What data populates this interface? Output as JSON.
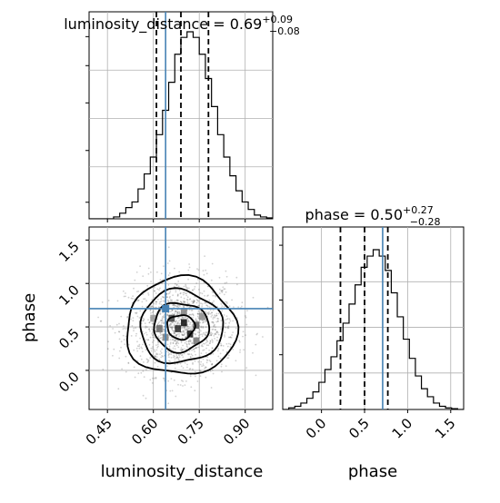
{
  "chart_data": [
    {
      "type": "histogram",
      "panel": "top-left",
      "parameter": "luminosity_distance",
      "title": {
        "name": "luminosity_distance",
        "value": "0.69",
        "plus": "+0.09",
        "minus": "−0.08"
      },
      "x_range": [
        0.39,
        0.99
      ],
      "quantiles": [
        0.61,
        0.69,
        0.78
      ],
      "truth": 0.64,
      "bin_edges": [
        0.39,
        0.41,
        0.43,
        0.45,
        0.47,
        0.49,
        0.51,
        0.53,
        0.55,
        0.57,
        0.59,
        0.61,
        0.63,
        0.65,
        0.67,
        0.69,
        0.71,
        0.73,
        0.75,
        0.77,
        0.79,
        0.81,
        0.83,
        0.85,
        0.87,
        0.89,
        0.91,
        0.93,
        0.95,
        0.97,
        0.99
      ],
      "counts": [
        0,
        0,
        0,
        0,
        0.01,
        0.03,
        0.06,
        0.09,
        0.16,
        0.24,
        0.33,
        0.45,
        0.58,
        0.73,
        0.88,
        0.97,
        1.0,
        0.97,
        0.88,
        0.75,
        0.6,
        0.45,
        0.33,
        0.23,
        0.15,
        0.09,
        0.05,
        0.02,
        0.01,
        0.005
      ]
    },
    {
      "type": "histogram",
      "panel": "bottom-right",
      "parameter": "phase",
      "title": {
        "name": "phase",
        "value": "0.50",
        "plus": "+0.27",
        "minus": "−0.28"
      },
      "x_range": [
        -0.45,
        1.65
      ],
      "x_ticks": [
        "0.0",
        "0.5",
        "1.0",
        "1.5"
      ],
      "x_tick_values": [
        0.0,
        0.5,
        1.0,
        1.5
      ],
      "xlabel": "phase",
      "quantiles": [
        0.22,
        0.5,
        0.77
      ],
      "truth": 0.71,
      "bin_edges": [
        -0.45,
        -0.38,
        -0.31,
        -0.24,
        -0.17,
        -0.1,
        -0.03,
        0.04,
        0.11,
        0.18,
        0.25,
        0.32,
        0.39,
        0.46,
        0.53,
        0.6,
        0.67,
        0.74,
        0.81,
        0.88,
        0.95,
        1.02,
        1.09,
        1.16,
        1.23,
        1.3,
        1.37,
        1.44,
        1.51,
        1.58,
        1.65
      ],
      "counts": [
        0,
        0.01,
        0.02,
        0.04,
        0.07,
        0.11,
        0.17,
        0.25,
        0.33,
        0.43,
        0.54,
        0.66,
        0.78,
        0.89,
        0.96,
        1.0,
        0.96,
        0.87,
        0.73,
        0.58,
        0.44,
        0.32,
        0.21,
        0.13,
        0.08,
        0.04,
        0.02,
        0.01,
        0.005,
        0
      ]
    },
    {
      "type": "scatter",
      "panel": "bottom-left",
      "x_parameter": "luminosity_distance",
      "y_parameter": "phase",
      "xlabel": "luminosity_distance",
      "ylabel": "phase",
      "x_range": [
        0.39,
        0.99
      ],
      "y_range": [
        -0.45,
        1.65
      ],
      "x_ticks": [
        "0.45",
        "0.60",
        "0.75",
        "0.90"
      ],
      "x_tick_values": [
        0.45,
        0.6,
        0.75,
        0.9
      ],
      "y_ticks": [
        "0.0",
        "0.5",
        "1.0",
        "1.5"
      ],
      "y_tick_values": [
        0.0,
        0.5,
        1.0,
        1.5
      ],
      "truth": [
        0.64,
        0.71
      ],
      "center": [
        0.69,
        0.5
      ],
      "spread": [
        0.09,
        0.28
      ],
      "contour_levels_sigma": [
        0.5,
        1.0,
        1.5,
        2.0
      ],
      "density_cells": [
        {
          "x": 0.64,
          "y": 0.71,
          "v": 0.55
        },
        {
          "x": 0.66,
          "y": 0.6,
          "v": 0.75
        },
        {
          "x": 0.7,
          "y": 0.55,
          "v": 0.95
        },
        {
          "x": 0.68,
          "y": 0.48,
          "v": 0.85
        },
        {
          "x": 0.72,
          "y": 0.42,
          "v": 0.9
        },
        {
          "x": 0.74,
          "y": 0.52,
          "v": 0.65
        },
        {
          "x": 0.62,
          "y": 0.48,
          "v": 0.6
        },
        {
          "x": 0.7,
          "y": 0.68,
          "v": 0.5
        },
        {
          "x": 0.76,
          "y": 0.62,
          "v": 0.45
        },
        {
          "x": 0.64,
          "y": 0.38,
          "v": 0.5
        },
        {
          "x": 0.74,
          "y": 0.34,
          "v": 0.55
        },
        {
          "x": 0.6,
          "y": 0.6,
          "v": 0.4
        }
      ]
    }
  ],
  "colors": {
    "truth": "#4682b4",
    "hist": "#000000",
    "grid": "#b0b0b0",
    "scatter": "#000000"
  }
}
